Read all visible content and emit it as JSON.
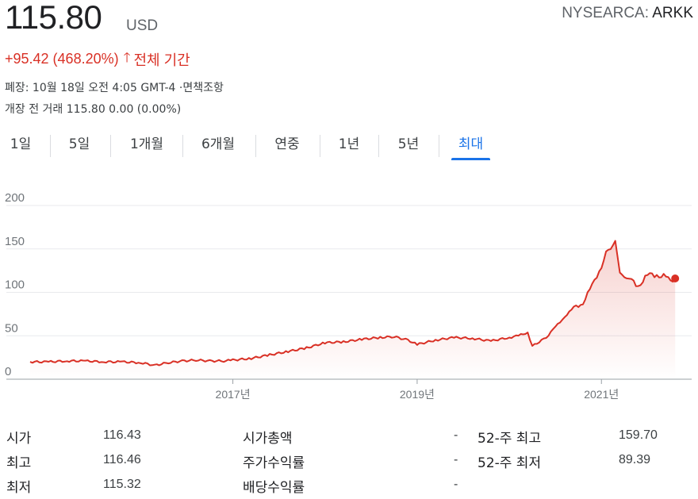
{
  "quote": {
    "price": "115.80",
    "currency": "USD",
    "exchange": "NYSEARCA:",
    "symbol": "ARKK",
    "change": "+95.42 (468.20%)",
    "change_arrow": "🡑",
    "change_period": "전체 기간",
    "closed_line": "폐장: 10월 18일 오전 4:05 GMT-4 ·면책조항",
    "premarket_line": "개장 전 거래 115.80 0.00 (0.00%)",
    "accent_color": "#d93025"
  },
  "tabs": [
    {
      "label": "1일"
    },
    {
      "label": "5일"
    },
    {
      "label": "1개월"
    },
    {
      "label": "6개월"
    },
    {
      "label": "연중"
    },
    {
      "label": "1년"
    },
    {
      "label": "5년"
    },
    {
      "label": "최대",
      "active": true
    }
  ],
  "chart_data": {
    "type": "area",
    "y_ticks": [
      "200",
      "150",
      "100",
      "50",
      "0"
    ],
    "x_ticks": [
      "2017년",
      "2019년",
      "2021년"
    ],
    "ylim": [
      0,
      200
    ],
    "grid": true,
    "line_color": "#d93025",
    "x": [
      2014.8,
      2015.0,
      2015.2,
      2015.4,
      2015.6,
      2015.8,
      2016.0,
      2016.15,
      2016.3,
      2016.45,
      2016.6,
      2016.75,
      2016.9,
      2017.0,
      2017.2,
      2017.4,
      2017.6,
      2017.8,
      2018.0,
      2018.2,
      2018.4,
      2018.6,
      2018.75,
      2018.9,
      2019.0,
      2019.2,
      2019.4,
      2019.6,
      2019.8,
      2020.0,
      2020.1,
      2020.2,
      2020.25,
      2020.4,
      2020.5,
      2020.6,
      2020.7,
      2020.8,
      2020.9,
      2021.0,
      2021.05,
      2021.1,
      2021.15,
      2021.2,
      2021.25,
      2021.3,
      2021.4,
      2021.5,
      2021.6,
      2021.7,
      2021.75,
      2021.8
    ],
    "values": [
      20,
      20,
      21,
      21,
      20,
      20,
      19,
      16,
      19,
      21,
      22,
      21,
      21,
      22,
      24,
      28,
      32,
      36,
      42,
      43,
      46,
      48,
      49,
      45,
      40,
      45,
      48,
      47,
      44,
      48,
      50,
      54,
      38,
      48,
      60,
      72,
      82,
      88,
      108,
      130,
      145,
      152,
      157,
      125,
      115,
      118,
      105,
      122,
      118,
      120,
      112,
      116
    ]
  },
  "stats": {
    "col1": [
      {
        "label": "시가",
        "value": "116.43"
      },
      {
        "label": "최고",
        "value": "116.46"
      },
      {
        "label": "최저",
        "value": "115.32"
      }
    ],
    "col2": [
      {
        "label": "시가총액",
        "value": "-"
      },
      {
        "label": "주가수익률",
        "value": "-"
      },
      {
        "label": "배당수익률",
        "value": "-"
      }
    ],
    "col3": [
      {
        "label": "52-주 최고",
        "value": "159.70"
      },
      {
        "label": "52-주 최저",
        "value": "89.39"
      }
    ]
  }
}
